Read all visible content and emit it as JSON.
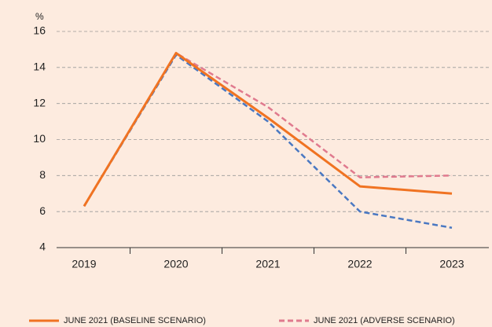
{
  "chart_data": {
    "type": "line",
    "y_unit": "%",
    "categories": [
      "2019",
      "2020",
      "2021",
      "2022",
      "2023"
    ],
    "series": [
      {
        "name": "JUNE 2021 (BASELINE SCENARIO)",
        "color": "#f07322",
        "dash": false,
        "values": [
          6.3,
          14.8,
          11.2,
          7.4,
          7.0
        ]
      },
      {
        "name": "JUNE 2021 (ADVERSE SCENARIO)",
        "color": "#e07a8e",
        "dash": true,
        "values": [
          6.3,
          14.8,
          11.8,
          7.9,
          8.0
        ]
      },
      {
        "color": "#4a78c2",
        "dash": true,
        "values": [
          6.3,
          14.7,
          11.0,
          6.0,
          5.1
        ]
      }
    ],
    "ylim": [
      4,
      16
    ],
    "yticks": [
      4,
      6,
      8,
      10,
      12,
      14,
      16
    ],
    "grid": true
  }
}
